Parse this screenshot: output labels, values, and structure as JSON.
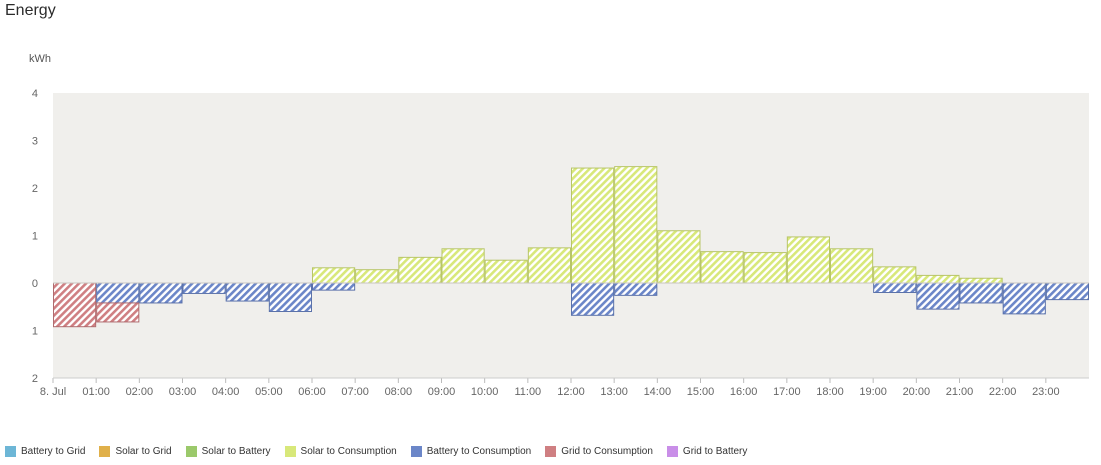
{
  "header": {
    "title": "Energy"
  },
  "chart_data": {
    "type": "bar",
    "stacked": true,
    "ylabel": "kWh",
    "ylim": [
      -2,
      4
    ],
    "yticks": [
      {
        "value": 4,
        "label": "4"
      },
      {
        "value": 3,
        "label": "3"
      },
      {
        "value": 2,
        "label": "2"
      },
      {
        "value": 1,
        "label": "1"
      },
      {
        "value": 0,
        "label": "0"
      },
      {
        "value": -1,
        "label": "1"
      },
      {
        "value": -2,
        "label": "2"
      }
    ],
    "xticks": [
      "8. Jul",
      "01:00",
      "02:00",
      "03:00",
      "04:00",
      "05:00",
      "06:00",
      "07:00",
      "08:00",
      "09:00",
      "10:00",
      "11:00",
      "12:00",
      "13:00",
      "14:00",
      "15:00",
      "16:00",
      "17:00",
      "18:00",
      "19:00",
      "20:00",
      "21:00",
      "22:00",
      "23:00"
    ],
    "categories": [
      "00:00",
      "01:00",
      "02:00",
      "03:00",
      "04:00",
      "05:00",
      "06:00",
      "07:00",
      "08:00",
      "09:00",
      "10:00",
      "11:00",
      "12:00",
      "13:00",
      "14:00",
      "15:00",
      "16:00",
      "17:00",
      "18:00",
      "19:00",
      "20:00",
      "21:00",
      "22:00",
      "23:00"
    ],
    "series": [
      {
        "name": "Battery to Grid",
        "color": "#6db6d6",
        "values": [
          0,
          0,
          0,
          0,
          0,
          0,
          0,
          0,
          0,
          0,
          0,
          0,
          0,
          0,
          0,
          0,
          0,
          0,
          0,
          0,
          0,
          0,
          0,
          0
        ]
      },
      {
        "name": "Solar to Grid",
        "color": "#e0b04a",
        "values": [
          0,
          0,
          0,
          0,
          0,
          0,
          0,
          0,
          0,
          0,
          0,
          0,
          0,
          0,
          0,
          0,
          0,
          0,
          0,
          0,
          0,
          0,
          0,
          0
        ]
      },
      {
        "name": "Solar to Battery",
        "color": "#9bc96b",
        "values": [
          0,
          0,
          0,
          0,
          0,
          0,
          0,
          0,
          0,
          0,
          0,
          0,
          0,
          0,
          0,
          0,
          0,
          0,
          0,
          0,
          0,
          0,
          0,
          0
        ]
      },
      {
        "name": "Solar to Consumption",
        "color": "#d8e87a",
        "values": [
          0,
          0,
          0,
          0,
          0,
          0,
          0.32,
          0.28,
          0.54,
          0.72,
          0.48,
          0.74,
          2.42,
          2.45,
          1.1,
          0.66,
          0.64,
          0.97,
          0.72,
          0.34,
          0.16,
          0.1,
          0,
          0
        ]
      },
      {
        "name": "Battery to Consumption",
        "color": "#6b86c8",
        "values": [
          0,
          -0.42,
          -0.42,
          -0.22,
          -0.38,
          -0.6,
          -0.15,
          0,
          0,
          0,
          0,
          0,
          -0.68,
          -0.26,
          0,
          0,
          0,
          0,
          0,
          -0.2,
          -0.55,
          -0.42,
          -0.65,
          -0.35
        ]
      },
      {
        "name": "Grid to Consumption",
        "color": "#cf7f82",
        "values": [
          -0.92,
          -0.4,
          0,
          0,
          0,
          0,
          0,
          0,
          0,
          0,
          0,
          0,
          0,
          0,
          0,
          0,
          0,
          0,
          0,
          0,
          0,
          0,
          0,
          0
        ]
      },
      {
        "name": "Grid to Battery",
        "color": "#c98ee8",
        "values": [
          0,
          0,
          0,
          0,
          0,
          0,
          0,
          0,
          0,
          0,
          0,
          0,
          0,
          0,
          0,
          0,
          0,
          0,
          0,
          0,
          0,
          0,
          0,
          0
        ]
      }
    ],
    "legend_position": "bottom-left",
    "grid": false
  }
}
